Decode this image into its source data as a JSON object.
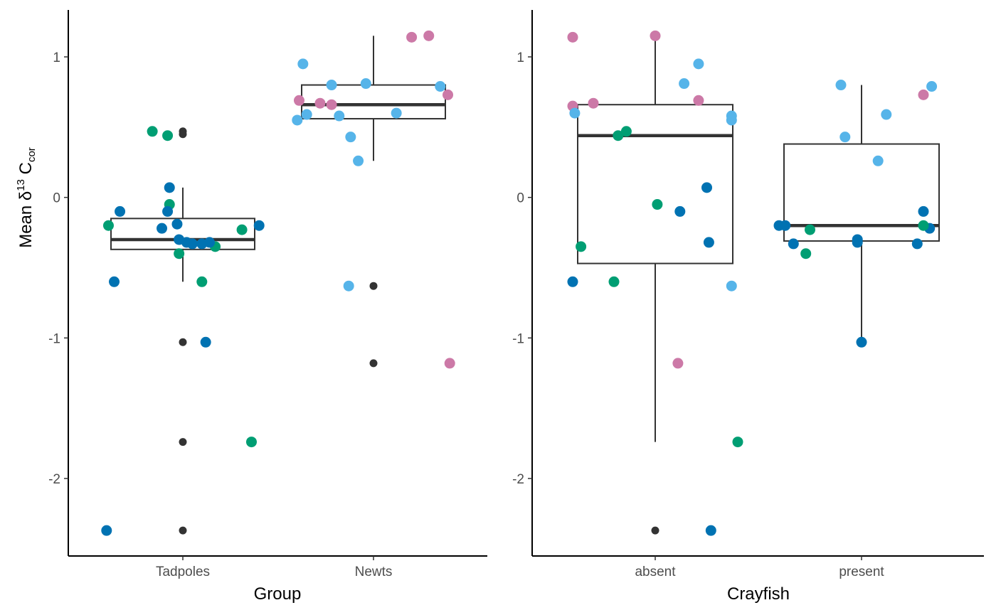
{
  "chart_data": [
    {
      "type": "boxplot",
      "xlabel": "Group",
      "ylabel": "Mean δ13 Ccor",
      "ylabel_parts": {
        "base": "Mean δ",
        "sup": "13",
        "mid": " C",
        "sub": "cor"
      },
      "categories": [
        "Tadpoles",
        "Newts"
      ],
      "ylim": [
        -2.5,
        1.3
      ],
      "yticks": [
        -2,
        -1,
        0,
        1
      ],
      "ytick_labels": [
        "-2",
        "-1",
        "0",
        "1"
      ],
      "boxes": [
        {
          "category": "Tadpoles",
          "whisker_low": -0.6,
          "q1": -0.37,
          "median": -0.3,
          "q3": -0.15,
          "whisker_high": 0.07
        },
        {
          "category": "Newts",
          "whisker_low": 0.26,
          "q1": 0.56,
          "median": 0.66,
          "q3": 0.8,
          "whisker_high": 1.15
        }
      ],
      "outliers": [
        {
          "category": "Tadpoles",
          "y": 0.47
        },
        {
          "category": "Tadpoles",
          "y": 0.45
        },
        {
          "category": "Tadpoles",
          "y": -1.03
        },
        {
          "category": "Tadpoles",
          "y": -1.74
        },
        {
          "category": "Tadpoles",
          "y": -2.37
        },
        {
          "category": "Newts",
          "y": -0.63
        },
        {
          "category": "Newts",
          "y": -1.18
        }
      ],
      "points": [
        {
          "category": "Tadpoles",
          "x": 0.61,
          "y": -0.2,
          "color": "#009E73"
        },
        {
          "category": "Tadpoles",
          "x": 0.84,
          "y": 0.47,
          "color": "#009E73"
        },
        {
          "category": "Tadpoles",
          "x": 0.92,
          "y": 0.44,
          "color": "#009E73"
        },
        {
          "category": "Tadpoles",
          "x": 0.93,
          "y": -0.05,
          "color": "#009E73"
        },
        {
          "category": "Tadpoles",
          "x": 0.98,
          "y": -0.4,
          "color": "#009E73"
        },
        {
          "category": "Tadpoles",
          "x": 1.1,
          "y": -0.6,
          "color": "#009E73"
        },
        {
          "category": "Tadpoles",
          "x": 1.17,
          "y": -0.35,
          "color": "#009E73"
        },
        {
          "category": "Tadpoles",
          "x": 1.31,
          "y": -0.23,
          "color": "#009E73"
        },
        {
          "category": "Tadpoles",
          "x": 1.36,
          "y": -1.74,
          "color": "#009E73"
        },
        {
          "category": "Tadpoles",
          "x": 0.6,
          "y": -2.37,
          "color": "#0072B2"
        },
        {
          "category": "Tadpoles",
          "x": 0.64,
          "y": -0.6,
          "color": "#0072B2"
        },
        {
          "category": "Tadpoles",
          "x": 0.67,
          "y": -0.1,
          "color": "#0072B2"
        },
        {
          "category": "Tadpoles",
          "x": 0.89,
          "y": -0.22,
          "color": "#0072B2"
        },
        {
          "category": "Tadpoles",
          "x": 0.92,
          "y": -0.1,
          "color": "#0072B2"
        },
        {
          "category": "Tadpoles",
          "x": 0.93,
          "y": 0.07,
          "color": "#0072B2"
        },
        {
          "category": "Tadpoles",
          "x": 0.97,
          "y": -0.19,
          "color": "#0072B2"
        },
        {
          "category": "Tadpoles",
          "x": 0.98,
          "y": -0.3,
          "color": "#0072B2"
        },
        {
          "category": "Tadpoles",
          "x": 1.02,
          "y": -0.32,
          "color": "#0072B2"
        },
        {
          "category": "Tadpoles",
          "x": 1.05,
          "y": -0.33,
          "color": "#0072B2"
        },
        {
          "category": "Tadpoles",
          "x": 1.1,
          "y": -0.33,
          "color": "#0072B2"
        },
        {
          "category": "Tadpoles",
          "x": 1.14,
          "y": -0.32,
          "color": "#0072B2"
        },
        {
          "category": "Tadpoles",
          "x": 1.12,
          "y": -1.03,
          "color": "#0072B2"
        },
        {
          "category": "Tadpoles",
          "x": 1.4,
          "y": -0.2,
          "color": "#0072B2"
        },
        {
          "category": "Newts",
          "x": 1.6,
          "y": 0.55,
          "color": "#56B4E9"
        },
        {
          "category": "Newts",
          "x": 1.63,
          "y": 0.95,
          "color": "#56B4E9"
        },
        {
          "category": "Newts",
          "x": 1.65,
          "y": 0.59,
          "color": "#56B4E9"
        },
        {
          "category": "Newts",
          "x": 1.78,
          "y": 0.8,
          "color": "#56B4E9"
        },
        {
          "category": "Newts",
          "x": 1.82,
          "y": 0.58,
          "color": "#56B4E9"
        },
        {
          "category": "Newts",
          "x": 1.87,
          "y": -0.63,
          "color": "#56B4E9"
        },
        {
          "category": "Newts",
          "x": 1.88,
          "y": 0.43,
          "color": "#56B4E9"
        },
        {
          "category": "Newts",
          "x": 1.92,
          "y": 0.26,
          "color": "#56B4E9"
        },
        {
          "category": "Newts",
          "x": 1.96,
          "y": 0.81,
          "color": "#56B4E9"
        },
        {
          "category": "Newts",
          "x": 2.12,
          "y": 0.6,
          "color": "#56B4E9"
        },
        {
          "category": "Newts",
          "x": 2.35,
          "y": 0.79,
          "color": "#56B4E9"
        },
        {
          "category": "Newts",
          "x": 1.61,
          "y": 0.69,
          "color": "#CC79A7"
        },
        {
          "category": "Newts",
          "x": 1.72,
          "y": 0.67,
          "color": "#CC79A7"
        },
        {
          "category": "Newts",
          "x": 1.78,
          "y": 0.66,
          "color": "#CC79A7"
        },
        {
          "category": "Newts",
          "x": 2.2,
          "y": 1.14,
          "color": "#CC79A7"
        },
        {
          "category": "Newts",
          "x": 2.29,
          "y": 1.15,
          "color": "#CC79A7"
        },
        {
          "category": "Newts",
          "x": 2.39,
          "y": 0.73,
          "color": "#CC79A7"
        },
        {
          "category": "Newts",
          "x": 2.4,
          "y": -1.18,
          "color": "#CC79A7"
        }
      ],
      "grid": false
    },
    {
      "type": "boxplot",
      "xlabel": "Crayfish",
      "ylabel": "",
      "categories": [
        "absent",
        "present"
      ],
      "ylim": [
        -2.5,
        1.3
      ],
      "yticks": [
        -2,
        -1,
        0,
        1
      ],
      "ytick_labels": [
        "-2",
        "-1",
        "0",
        "1"
      ],
      "boxes": [
        {
          "category": "absent",
          "whisker_low": -1.74,
          "q1": -0.47,
          "median": 0.44,
          "q3": 0.66,
          "whisker_high": 1.15
        },
        {
          "category": "present",
          "whisker_low": -1.03,
          "q1": -0.31,
          "median": -0.2,
          "q3": 0.38,
          "whisker_high": 0.8
        }
      ],
      "outliers": [
        {
          "category": "absent",
          "y": -2.37
        }
      ],
      "points": [
        {
          "category": "absent",
          "x": 0.6,
          "y": 1.14,
          "color": "#CC79A7"
        },
        {
          "category": "absent",
          "x": 0.6,
          "y": 0.65,
          "color": "#CC79A7"
        },
        {
          "category": "absent",
          "x": 0.7,
          "y": 0.67,
          "color": "#CC79A7"
        },
        {
          "category": "absent",
          "x": 1.0,
          "y": 1.15,
          "color": "#CC79A7"
        },
        {
          "category": "absent",
          "x": 1.21,
          "y": 0.69,
          "color": "#CC79A7"
        },
        {
          "category": "absent",
          "x": 1.11,
          "y": -1.18,
          "color": "#CC79A7"
        },
        {
          "category": "absent",
          "x": 0.61,
          "y": 0.6,
          "color": "#56B4E9"
        },
        {
          "category": "absent",
          "x": 1.14,
          "y": 0.81,
          "color": "#56B4E9"
        },
        {
          "category": "absent",
          "x": 1.21,
          "y": 0.95,
          "color": "#56B4E9"
        },
        {
          "category": "absent",
          "x": 1.37,
          "y": 0.58,
          "color": "#56B4E9"
        },
        {
          "category": "absent",
          "x": 1.37,
          "y": 0.55,
          "color": "#56B4E9"
        },
        {
          "category": "absent",
          "x": 1.37,
          "y": -0.63,
          "color": "#56B4E9"
        },
        {
          "category": "absent",
          "x": 0.64,
          "y": -0.35,
          "color": "#009E73"
        },
        {
          "category": "absent",
          "x": 0.8,
          "y": -0.6,
          "color": "#009E73"
        },
        {
          "category": "absent",
          "x": 0.82,
          "y": 0.44,
          "color": "#009E73"
        },
        {
          "category": "absent",
          "x": 0.86,
          "y": 0.47,
          "color": "#009E73"
        },
        {
          "category": "absent",
          "x": 1.01,
          "y": -0.05,
          "color": "#009E73"
        },
        {
          "category": "absent",
          "x": 1.4,
          "y": -1.74,
          "color": "#009E73"
        },
        {
          "category": "absent",
          "x": 0.6,
          "y": -0.6,
          "color": "#0072B2"
        },
        {
          "category": "absent",
          "x": 1.12,
          "y": -0.1,
          "color": "#0072B2"
        },
        {
          "category": "absent",
          "x": 1.25,
          "y": 0.07,
          "color": "#0072B2"
        },
        {
          "category": "absent",
          "x": 1.26,
          "y": -0.32,
          "color": "#0072B2"
        },
        {
          "category": "absent",
          "x": 1.27,
          "y": -2.37,
          "color": "#0072B2"
        },
        {
          "category": "present",
          "x": 1.6,
          "y": -0.2,
          "color": "#0072B2"
        },
        {
          "category": "present",
          "x": 1.63,
          "y": -0.2,
          "color": "#0072B2"
        },
        {
          "category": "present",
          "x": 1.67,
          "y": -0.33,
          "color": "#0072B2"
        },
        {
          "category": "present",
          "x": 1.98,
          "y": -0.3,
          "color": "#0072B2"
        },
        {
          "category": "present",
          "x": 1.98,
          "y": -0.32,
          "color": "#0072B2"
        },
        {
          "category": "present",
          "x": 2.0,
          "y": -1.03,
          "color": "#0072B2"
        },
        {
          "category": "present",
          "x": 2.27,
          "y": -0.33,
          "color": "#0072B2"
        },
        {
          "category": "present",
          "x": 2.3,
          "y": -0.1,
          "color": "#0072B2"
        },
        {
          "category": "present",
          "x": 2.33,
          "y": -0.22,
          "color": "#0072B2"
        },
        {
          "category": "present",
          "x": 1.73,
          "y": -0.4,
          "color": "#009E73"
        },
        {
          "category": "present",
          "x": 1.75,
          "y": -0.23,
          "color": "#009E73"
        },
        {
          "category": "present",
          "x": 2.3,
          "y": -0.2,
          "color": "#009E73"
        },
        {
          "category": "present",
          "x": 1.9,
          "y": 0.8,
          "color": "#56B4E9"
        },
        {
          "category": "present",
          "x": 1.92,
          "y": 0.43,
          "color": "#56B4E9"
        },
        {
          "category": "present",
          "x": 2.08,
          "y": 0.26,
          "color": "#56B4E9"
        },
        {
          "category": "present",
          "x": 2.12,
          "y": 0.59,
          "color": "#56B4E9"
        },
        {
          "category": "present",
          "x": 2.34,
          "y": 0.79,
          "color": "#56B4E9"
        },
        {
          "category": "present",
          "x": 2.3,
          "y": 0.73,
          "color": "#CC79A7"
        }
      ],
      "grid": false
    }
  ],
  "colors": {
    "axis": "#000000",
    "box_stroke": "#333333",
    "outlier": "#333333",
    "tick_text": "#4d4d4d"
  }
}
